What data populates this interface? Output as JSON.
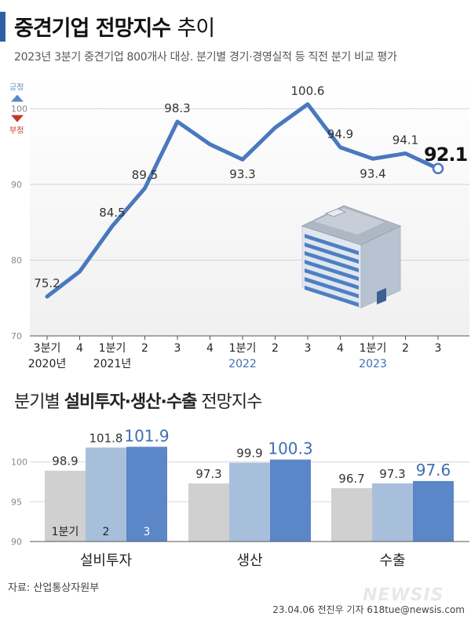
{
  "title": {
    "bold": "중견기업 전망지수",
    "light": "추이"
  },
  "subtitle": "2023년 3분기 중견기업 800개사 대상. 분기별 경기·경영실적 등 직전 분기 비교 평가",
  "legend": {
    "positive": "긍정",
    "negative": "부정",
    "positive_color": "#5b8ac9",
    "negative_color": "#c0392b"
  },
  "section2_title": {
    "pre": "분기별 ",
    "bold": "설비투자·생산·수출",
    "post": " 전망지수"
  },
  "source": "자료: 산업통상자원부",
  "credit": "23.04.06 전진우 기자 618tue@newsis.com",
  "watermark": "NEWSIS",
  "colors": {
    "line": "#4a78bf",
    "bar_q1": "#d0d0d0",
    "bar_q2": "#a8bfdc",
    "bar_q3": "#5b86c8",
    "plot_bg": "#f0f0f0"
  },
  "chart_data": [
    {
      "type": "line",
      "title": "중견기업 전망지수 추이",
      "ylim": [
        70,
        104
      ],
      "yticks": [
        70,
        80,
        90,
        100
      ],
      "x": [
        "3분기",
        "4",
        "1분기",
        "2",
        "3",
        "4",
        "1분기",
        "2",
        "3",
        "4",
        "1분기",
        "2",
        "3"
      ],
      "year_labels": [
        {
          "index": 0,
          "label": "2020년"
        },
        {
          "index": 2,
          "label": "2021년"
        },
        {
          "index": 6,
          "label": "2022"
        },
        {
          "index": 10,
          "label": "2023"
        }
      ],
      "series": [
        {
          "values": [
            75.2,
            78.5,
            84.5,
            89.5,
            98.3,
            95.3,
            93.3,
            97.5,
            100.6,
            94.9,
            93.4,
            94.1,
            92.1
          ]
        }
      ],
      "data_labels": [
        {
          "index": 0,
          "text": "75.2",
          "pos": "above"
        },
        {
          "index": 2,
          "text": "84.5",
          "pos": "above"
        },
        {
          "index": 3,
          "text": "89.5",
          "pos": "above"
        },
        {
          "index": 4,
          "text": "98.3",
          "pos": "above"
        },
        {
          "index": 6,
          "text": "93.3",
          "pos": "below"
        },
        {
          "index": 8,
          "text": "100.6",
          "pos": "above"
        },
        {
          "index": 9,
          "text": "94.9",
          "pos": "above"
        },
        {
          "index": 10,
          "text": "93.4",
          "pos": "below"
        },
        {
          "index": 11,
          "text": "94.1",
          "pos": "above"
        },
        {
          "index": 12,
          "text": "92.1",
          "pos": "highlight"
        }
      ],
      "grid": true
    },
    {
      "type": "bar",
      "title": "분기별 설비투자·생산·수출 전망지수",
      "categories": [
        "설비투자",
        "생산",
        "수출"
      ],
      "series": [
        {
          "name": "1분기",
          "values": [
            98.9,
            97.3,
            96.7
          ]
        },
        {
          "name": "2",
          "values": [
            101.8,
            99.9,
            97.3
          ]
        },
        {
          "name": "3",
          "values": [
            101.9,
            100.3,
            97.6
          ]
        }
      ],
      "ylim": [
        90,
        104
      ],
      "yticks": [
        90,
        95,
        100
      ],
      "grid": true
    }
  ]
}
